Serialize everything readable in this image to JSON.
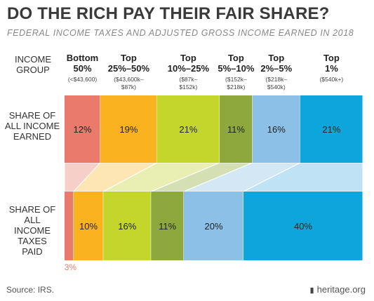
{
  "header": {
    "title": "DO THE RICH PAY THEIR FAIR SHARE?",
    "subtitle": "FEDERAL INCOME TAXES AND ADJUSTED GROSS INCOME EARNED IN 2018"
  },
  "labels": {
    "income_group": "INCOME GROUP",
    "share_income": "SHARE OF ALL INCOME EARNED",
    "share_taxes": "SHARE OF ALL INCOME TAXES PAID"
  },
  "footer": {
    "source": "Source: IRS.",
    "brand": "heritage.org"
  },
  "chart_data": {
    "type": "bar",
    "categories": [
      {
        "name": "Bottom 50%",
        "range": "(<$43,600)"
      },
      {
        "name": "Top 25%–50%",
        "range": "($43,600k–$87k)"
      },
      {
        "name": "Top 10%–25%",
        "range": "($87k–$152k)"
      },
      {
        "name": "Top 5%–10%",
        "range": "($152k–$218k)"
      },
      {
        "name": "Top 2%–5%",
        "range": "($218k–$540k)"
      },
      {
        "name": "Top 1%",
        "range": "($540k+)"
      }
    ],
    "series": [
      {
        "name": "SHARE OF ALL INCOME EARNED",
        "values": [
          12,
          19,
          21,
          11,
          16,
          21
        ]
      },
      {
        "name": "SHARE OF ALL INCOME TAXES PAID",
        "values": [
          3,
          10,
          16,
          11,
          20,
          40
        ]
      }
    ],
    "unit": "%",
    "colors": [
      "#ea7b6c",
      "#fbb21f",
      "#c4d62c",
      "#8da83d",
      "#8cc0e7",
      "#0ea5dc"
    ],
    "connector_colors": [
      "#f6cfc9",
      "#fde6b4",
      "#e9efb3",
      "#d4dfb4",
      "#d4e7f5",
      "#bfe2f4"
    ]
  }
}
